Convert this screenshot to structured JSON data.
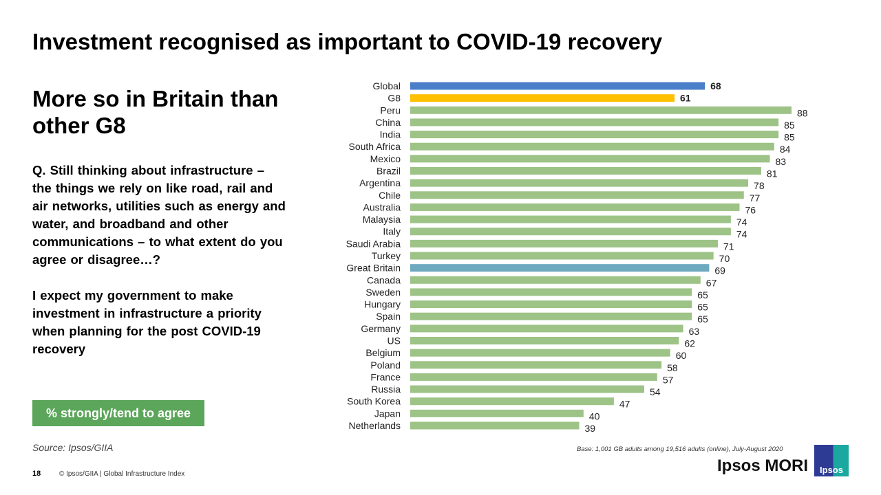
{
  "title": "Investment recognised as important to COVID-19 recovery",
  "subtitle": "More so in Britain than other G8",
  "question": "Q. Still thinking about infrastructure – the things we rely on like road, rail and air networks, utilities such as energy and water, and broadband and other communications – to what extent do you agree or disagree…?",
  "statement": "I expect my government to make investment in infrastructure a priority when planning for the post COVID-19 recovery",
  "badge": "% strongly/tend to agree",
  "source": "Source: Ipsos/GIIA",
  "page_number": "18",
  "copyright": "© Ipsos/GIIA | Global Infrastructure Index",
  "base": "Base: 1,001 GB adults among 19,516 adults (online), July-August 2020",
  "brand": "Ipsos MORI",
  "logo_text": "Ipsos",
  "colors": {
    "global": "#4a7ec8",
    "g8": "#ffc000",
    "country": "#9dc386",
    "gb": "#6ea9c0",
    "badge": "#5ba65a"
  },
  "chart_data": {
    "type": "bar",
    "orientation": "horizontal",
    "categories": [
      "Global",
      "G8",
      "Peru",
      "China",
      "India",
      "South Africa",
      "Mexico",
      "Brazil",
      "Argentina",
      "Chile",
      "Australia",
      "Malaysia",
      "Italy",
      "Saudi Arabia",
      "Turkey",
      "Great Britain",
      "Canada",
      "Sweden",
      "Hungary",
      "Spain",
      "Germany",
      "US",
      "Belgium",
      "Poland",
      "France",
      "Russia",
      "South Korea",
      "Japan",
      "Netherlands"
    ],
    "values": [
      68,
      61,
      88,
      85,
      85,
      84,
      83,
      81,
      78,
      77,
      76,
      74,
      74,
      71,
      70,
      69,
      67,
      65,
      65,
      65,
      63,
      62,
      60,
      58,
      57,
      54,
      47,
      40,
      39
    ],
    "xlim": [
      0,
      100
    ],
    "grid": false,
    "legend": "none"
  }
}
